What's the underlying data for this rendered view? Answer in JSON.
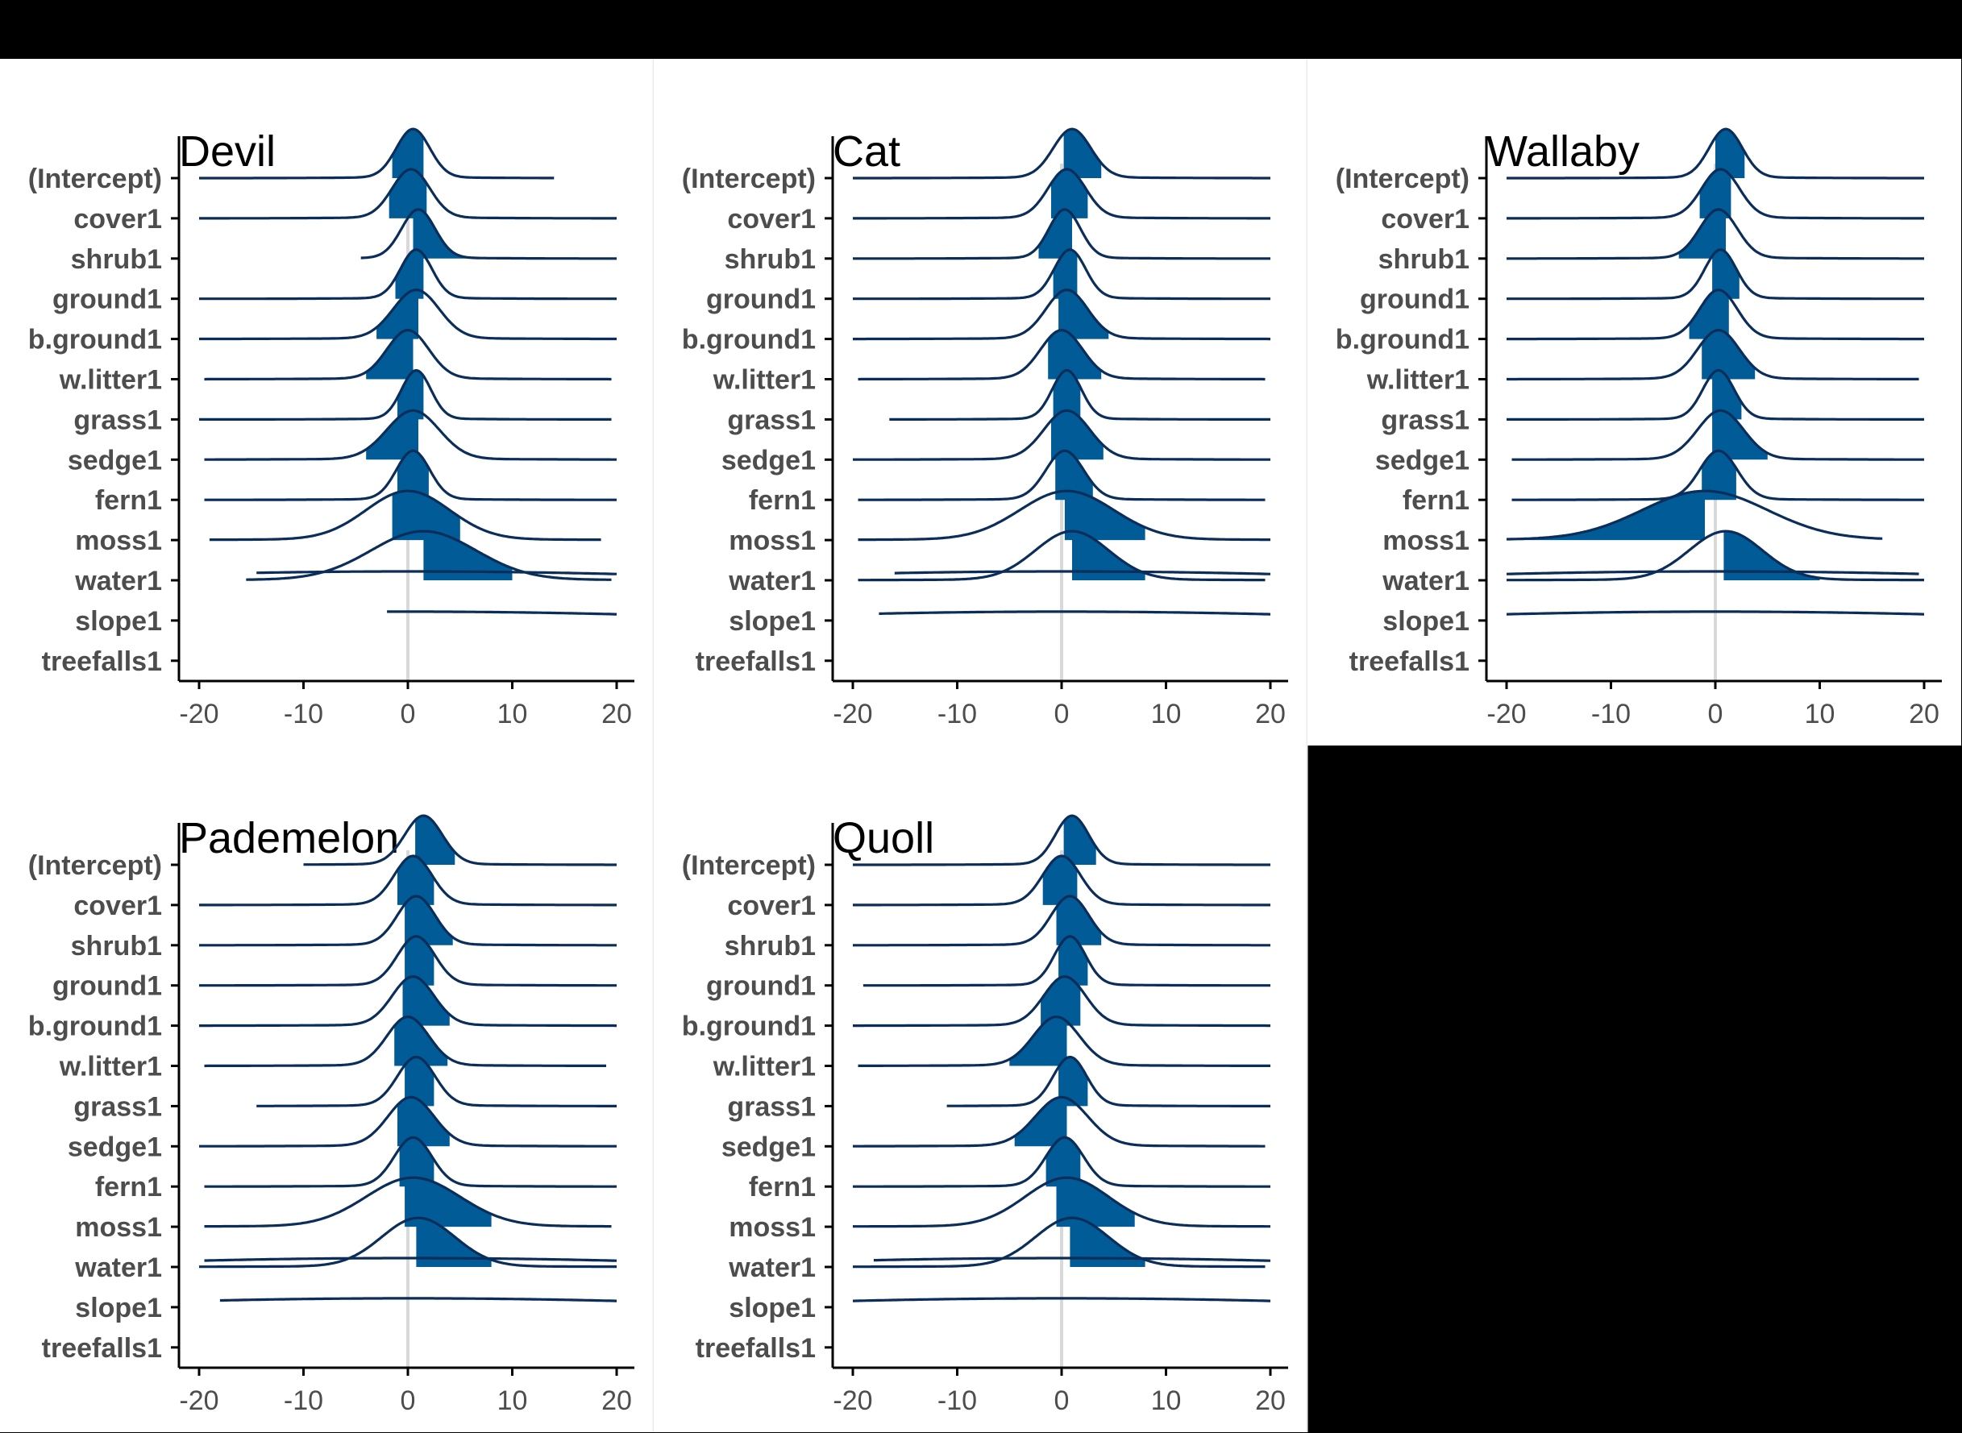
{
  "chart_data": [
    {
      "type": "ridgeline",
      "title": "Devil",
      "categories": [
        "(Intercept)",
        "cover1",
        "shrub1",
        "ground1",
        "b.ground1",
        "w.litter1",
        "grass1",
        "sedge1",
        "fern1",
        "moss1",
        "water1",
        "slope1",
        "treefalls1"
      ],
      "x_ticks": [
        -20,
        -10,
        0,
        10,
        20
      ],
      "xlim": [
        -22,
        22
      ],
      "series": [
        {
          "category": "(Intercept)",
          "mode": 0.5,
          "sd": 1.6,
          "range": [
            -20,
            14
          ],
          "ci": [
            -1.5,
            1.5
          ]
        },
        {
          "category": "cover1",
          "mode": 0.3,
          "sd": 1.8,
          "range": [
            -20,
            20
          ],
          "ci": [
            -1.8,
            1.8
          ]
        },
        {
          "category": "shrub1",
          "mode": 1.0,
          "sd": 1.6,
          "range": [
            -4.5,
            20
          ],
          "ci": [
            0.5,
            6.5
          ]
        },
        {
          "category": "ground1",
          "mode": 0.8,
          "sd": 1.5,
          "range": [
            -20,
            20
          ],
          "ci": [
            -1.2,
            1.5
          ]
        },
        {
          "category": "b.ground1",
          "mode": 0.8,
          "sd": 2.2,
          "range": [
            -20,
            20
          ],
          "ci": [
            -3.0,
            1.0
          ]
        },
        {
          "category": "w.litter1",
          "mode": 0.0,
          "sd": 2.0,
          "range": [
            -19.5,
            19.5
          ],
          "ci": [
            -4.0,
            0.5
          ]
        },
        {
          "category": "grass1",
          "mode": 0.8,
          "sd": 1.4,
          "range": [
            -20,
            19.5
          ],
          "ci": [
            -1.0,
            1.5
          ]
        },
        {
          "category": "sedge1",
          "mode": 0.5,
          "sd": 2.5,
          "range": [
            -19.5,
            20
          ],
          "ci": [
            -4.0,
            1.0
          ]
        },
        {
          "category": "fern1",
          "mode": 0.5,
          "sd": 1.6,
          "range": [
            -19.5,
            20
          ],
          "ci": [
            -1.0,
            2.0
          ]
        },
        {
          "category": "moss1",
          "mode": 0.0,
          "sd": 4.0,
          "range": [
            -19,
            18.5
          ],
          "ci": [
            -1.5,
            5.0
          ]
        },
        {
          "category": "water1",
          "mode": 1.5,
          "sd": 5.0,
          "range": [
            -15.5,
            19.5
          ],
          "ci": [
            1.5,
            10.0
          ]
        },
        {
          "category": "slope1",
          "mode": 0.0,
          "sd": 60,
          "range": [
            -14.5,
            20
          ],
          "ci": [
            0,
            0
          ]
        },
        {
          "category": "treefalls1",
          "mode": 0.0,
          "sd": 60,
          "range": [
            -2,
            20
          ],
          "ci": [
            0,
            0
          ]
        }
      ]
    },
    {
      "type": "ridgeline",
      "title": "Cat",
      "categories": [
        "(Intercept)",
        "cover1",
        "shrub1",
        "ground1",
        "b.ground1",
        "w.litter1",
        "grass1",
        "sedge1",
        "fern1",
        "moss1",
        "water1",
        "slope1",
        "treefalls1"
      ],
      "x_ticks": [
        -20,
        -10,
        0,
        10,
        20
      ],
      "xlim": [
        -22,
        22
      ],
      "series": [
        {
          "category": "(Intercept)",
          "mode": 1.0,
          "sd": 1.8,
          "range": [
            -20,
            20
          ],
          "ci": [
            0.2,
            3.8
          ]
        },
        {
          "category": "cover1",
          "mode": 0.5,
          "sd": 1.8,
          "range": [
            -20,
            20
          ],
          "ci": [
            -1.0,
            2.5
          ]
        },
        {
          "category": "shrub1",
          "mode": 0.3,
          "sd": 1.5,
          "range": [
            -20,
            20
          ],
          "ci": [
            -2.2,
            1.0
          ]
        },
        {
          "category": "ground1",
          "mode": 0.8,
          "sd": 1.5,
          "range": [
            -20,
            20
          ],
          "ci": [
            -0.8,
            1.5
          ]
        },
        {
          "category": "b.ground1",
          "mode": 0.5,
          "sd": 2.0,
          "range": [
            -20,
            20
          ],
          "ci": [
            -0.3,
            4.5
          ]
        },
        {
          "category": "w.litter1",
          "mode": 0.0,
          "sd": 2.0,
          "range": [
            -19.5,
            19.5
          ],
          "ci": [
            -1.3,
            3.8
          ]
        },
        {
          "category": "grass1",
          "mode": 0.5,
          "sd": 1.4,
          "range": [
            -16.5,
            20
          ],
          "ci": [
            -0.8,
            1.8
          ]
        },
        {
          "category": "sedge1",
          "mode": 0.5,
          "sd": 2.2,
          "range": [
            -20,
            20
          ],
          "ci": [
            -1.0,
            4.0
          ]
        },
        {
          "category": "fern1",
          "mode": 0.3,
          "sd": 1.8,
          "range": [
            -19.5,
            19.5
          ],
          "ci": [
            -0.6,
            3.0
          ]
        },
        {
          "category": "moss1",
          "mode": 0.5,
          "sd": 4.5,
          "range": [
            -19.5,
            20
          ],
          "ci": [
            0.3,
            8.0
          ]
        },
        {
          "category": "water1",
          "mode": 1.0,
          "sd": 3.5,
          "range": [
            -19.5,
            19.5
          ],
          "ci": [
            1.0,
            8.0
          ]
        },
        {
          "category": "slope1",
          "mode": 0.0,
          "sd": 60,
          "range": [
            -16,
            20
          ],
          "ci": [
            0,
            0
          ]
        },
        {
          "category": "treefalls1",
          "mode": 0.0,
          "sd": 60,
          "range": [
            -17.5,
            20
          ],
          "ci": [
            0,
            0
          ]
        }
      ]
    },
    {
      "type": "ridgeline",
      "title": "Wallaby",
      "categories": [
        "(Intercept)",
        "cover1",
        "shrub1",
        "ground1",
        "b.ground1",
        "w.litter1",
        "grass1",
        "sedge1",
        "fern1",
        "moss1",
        "water1",
        "slope1",
        "treefalls1"
      ],
      "x_ticks": [
        -20,
        -10,
        0,
        10,
        20
      ],
      "xlim": [
        -22,
        22
      ],
      "series": [
        {
          "category": "(Intercept)",
          "mode": 1.0,
          "sd": 1.6,
          "range": [
            -20,
            20
          ],
          "ci": [
            0.0,
            2.8
          ]
        },
        {
          "category": "cover1",
          "mode": 0.5,
          "sd": 1.8,
          "range": [
            -20,
            20
          ],
          "ci": [
            -1.5,
            1.5
          ]
        },
        {
          "category": "shrub1",
          "mode": 0.3,
          "sd": 1.8,
          "range": [
            -20,
            20
          ],
          "ci": [
            -3.5,
            1.0
          ]
        },
        {
          "category": "ground1",
          "mode": 0.5,
          "sd": 1.5,
          "range": [
            -20,
            20
          ],
          "ci": [
            -0.3,
            2.3
          ]
        },
        {
          "category": "b.ground1",
          "mode": 0.3,
          "sd": 1.8,
          "range": [
            -20,
            20
          ],
          "ci": [
            -2.5,
            1.3
          ]
        },
        {
          "category": "w.litter1",
          "mode": 0.3,
          "sd": 2.0,
          "range": [
            -20,
            19.5
          ],
          "ci": [
            -1.3,
            3.8
          ]
        },
        {
          "category": "grass1",
          "mode": 0.3,
          "sd": 1.5,
          "range": [
            -20,
            20
          ],
          "ci": [
            -0.3,
            2.5
          ]
        },
        {
          "category": "sedge1",
          "mode": 0.5,
          "sd": 2.2,
          "range": [
            -19.5,
            20
          ],
          "ci": [
            -0.3,
            5.0
          ]
        },
        {
          "category": "fern1",
          "mode": 0.3,
          "sd": 1.8,
          "range": [
            -19.5,
            20
          ],
          "ci": [
            -1.3,
            2.0
          ]
        },
        {
          "category": "moss1",
          "mode": -1.0,
          "sd": 6.0,
          "range": [
            -20,
            16
          ],
          "ci": [
            -20,
            -1.0
          ]
        },
        {
          "category": "water1",
          "mode": 1.0,
          "sd": 3.5,
          "range": [
            -20,
            20
          ],
          "ci": [
            0.8,
            10.0
          ]
        },
        {
          "category": "slope1",
          "mode": 0.0,
          "sd": 60,
          "range": [
            -20,
            19.5
          ],
          "ci": [
            0,
            0
          ]
        },
        {
          "category": "treefalls1",
          "mode": 0.0,
          "sd": 60,
          "range": [
            -20,
            20
          ],
          "ci": [
            0,
            0
          ]
        }
      ]
    },
    {
      "type": "ridgeline",
      "title": "Pademelon",
      "categories": [
        "(Intercept)",
        "cover1",
        "shrub1",
        "ground1",
        "b.ground1",
        "w.litter1",
        "grass1",
        "sedge1",
        "fern1",
        "moss1",
        "water1",
        "slope1",
        "treefalls1"
      ],
      "x_ticks": [
        -20,
        -10,
        0,
        10,
        20
      ],
      "xlim": [
        -22,
        22
      ],
      "series": [
        {
          "category": "(Intercept)",
          "mode": 1.5,
          "sd": 1.8,
          "range": [
            -10,
            20
          ],
          "ci": [
            0.7,
            4.5
          ]
        },
        {
          "category": "cover1",
          "mode": 0.5,
          "sd": 1.8,
          "range": [
            -20,
            20
          ],
          "ci": [
            -1.0,
            2.5
          ]
        },
        {
          "category": "shrub1",
          "mode": 0.8,
          "sd": 1.8,
          "range": [
            -20,
            20
          ],
          "ci": [
            -0.3,
            4.3
          ]
        },
        {
          "category": "ground1",
          "mode": 0.8,
          "sd": 1.8,
          "range": [
            -20,
            20
          ],
          "ci": [
            -0.3,
            2.5
          ]
        },
        {
          "category": "b.ground1",
          "mode": 0.5,
          "sd": 2.0,
          "range": [
            -20,
            20
          ],
          "ci": [
            -0.5,
            4.0
          ]
        },
        {
          "category": "w.litter1",
          "mode": 0.0,
          "sd": 2.0,
          "range": [
            -19.5,
            19
          ],
          "ci": [
            -1.3,
            3.8
          ]
        },
        {
          "category": "grass1",
          "mode": 0.8,
          "sd": 1.8,
          "range": [
            -14.5,
            20
          ],
          "ci": [
            -0.3,
            2.5
          ]
        },
        {
          "category": "sedge1",
          "mode": 0.3,
          "sd": 2.2,
          "range": [
            -20,
            20
          ],
          "ci": [
            -1.0,
            4.0
          ]
        },
        {
          "category": "fern1",
          "mode": 0.5,
          "sd": 1.8,
          "range": [
            -19.5,
            20
          ],
          "ci": [
            -0.8,
            2.5
          ]
        },
        {
          "category": "moss1",
          "mode": 0.5,
          "sd": 4.5,
          "range": [
            -19.5,
            19.5
          ],
          "ci": [
            -0.3,
            8.0
          ]
        },
        {
          "category": "water1",
          "mode": 1.0,
          "sd": 3.5,
          "range": [
            -20,
            20
          ],
          "ci": [
            0.8,
            8.0
          ]
        },
        {
          "category": "slope1",
          "mode": 0.0,
          "sd": 60,
          "range": [
            -19.5,
            20
          ],
          "ci": [
            0,
            0
          ]
        },
        {
          "category": "treefalls1",
          "mode": 0.0,
          "sd": 60,
          "range": [
            -18,
            20
          ],
          "ci": [
            0,
            0
          ]
        }
      ]
    },
    {
      "type": "ridgeline",
      "title": "Quoll",
      "categories": [
        "(Intercept)",
        "cover1",
        "shrub1",
        "ground1",
        "b.ground1",
        "w.litter1",
        "grass1",
        "sedge1",
        "fern1",
        "moss1",
        "water1",
        "slope1",
        "treefalls1"
      ],
      "x_ticks": [
        -20,
        -10,
        0,
        10,
        20
      ],
      "xlim": [
        -22,
        22
      ],
      "series": [
        {
          "category": "(Intercept)",
          "mode": 1.0,
          "sd": 1.6,
          "range": [
            -20,
            20
          ],
          "ci": [
            0.2,
            3.3
          ]
        },
        {
          "category": "cover1",
          "mode": 0.0,
          "sd": 1.8,
          "range": [
            -20,
            20
          ],
          "ci": [
            -1.8,
            1.5
          ]
        },
        {
          "category": "shrub1",
          "mode": 0.8,
          "sd": 1.8,
          "range": [
            -20,
            20
          ],
          "ci": [
            -0.5,
            3.8
          ]
        },
        {
          "category": "ground1",
          "mode": 0.8,
          "sd": 1.5,
          "range": [
            -19,
            20
          ],
          "ci": [
            -0.3,
            2.5
          ]
        },
        {
          "category": "b.ground1",
          "mode": 0.3,
          "sd": 2.0,
          "range": [
            -20,
            20
          ],
          "ci": [
            -2.0,
            1.8
          ]
        },
        {
          "category": "w.litter1",
          "mode": -0.5,
          "sd": 2.2,
          "range": [
            -19.5,
            20
          ],
          "ci": [
            -5.0,
            0.5
          ]
        },
        {
          "category": "grass1",
          "mode": 0.8,
          "sd": 1.6,
          "range": [
            -11,
            20
          ],
          "ci": [
            -0.3,
            2.5
          ]
        },
        {
          "category": "sedge1",
          "mode": 0.0,
          "sd": 2.5,
          "range": [
            -20,
            19.5
          ],
          "ci": [
            -4.5,
            0.5
          ]
        },
        {
          "category": "fern1",
          "mode": 0.3,
          "sd": 1.8,
          "range": [
            -20,
            20
          ],
          "ci": [
            -1.5,
            1.8
          ]
        },
        {
          "category": "moss1",
          "mode": 0.5,
          "sd": 4.0,
          "range": [
            -20,
            20
          ],
          "ci": [
            -0.5,
            7.0
          ]
        },
        {
          "category": "water1",
          "mode": 1.0,
          "sd": 3.5,
          "range": [
            -20,
            19.5
          ],
          "ci": [
            0.8,
            8.0
          ]
        },
        {
          "category": "slope1",
          "mode": 0.0,
          "sd": 60,
          "range": [
            -18,
            20
          ],
          "ci": [
            0,
            0
          ]
        },
        {
          "category": "treefalls1",
          "mode": 0.0,
          "sd": 60,
          "range": [
            -20,
            20
          ],
          "ci": [
            0,
            0
          ]
        }
      ]
    }
  ]
}
